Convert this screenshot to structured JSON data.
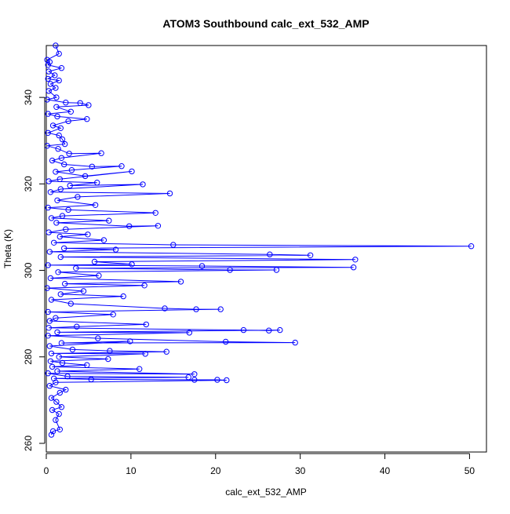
{
  "chart_data": {
    "type": "line",
    "title": "ATOM3 Southbound calc_ext_532_AMP",
    "xlabel": "calc_ext_532_AMP",
    "ylabel": "Theta (K)",
    "xlim": [
      0,
      52
    ],
    "ylim": [
      258,
      352
    ],
    "x_ticks": [
      0,
      10,
      20,
      30,
      40,
      50
    ],
    "y_ticks": [
      260,
      280,
      300,
      320,
      340
    ],
    "x_tick_labels": [
      "0",
      "10",
      "20",
      "30",
      "40",
      "50"
    ],
    "y_tick_labels": [
      "260",
      "280",
      "300",
      "320",
      "340"
    ],
    "grid": false,
    "legend": "none",
    "markers": "open-circle",
    "colors": {
      "series": "#0000ff",
      "axis": "#000000"
    },
    "series": [
      {
        "points": [
          [
            1.1,
            352.0
          ],
          [
            1.5,
            350.1
          ],
          [
            0.1,
            348.7
          ],
          [
            0.4,
            348.2
          ],
          [
            0.2,
            347.5
          ],
          [
            1.8,
            346.8
          ],
          [
            0.3,
            346.0
          ],
          [
            1.0,
            345.1
          ],
          [
            0.2,
            344.3
          ],
          [
            1.5,
            343.9
          ],
          [
            0.5,
            343.1
          ],
          [
            1.1,
            342.2
          ],
          [
            0.3,
            341.5
          ],
          [
            1.2,
            340.0
          ],
          [
            0.1,
            339.5
          ],
          [
            2.3,
            338.8
          ],
          [
            4.0,
            338.7
          ],
          [
            5.0,
            338.2
          ],
          [
            1.2,
            337.8
          ],
          [
            2.9,
            336.7
          ],
          [
            0.2,
            336.2
          ],
          [
            1.3,
            335.6
          ],
          [
            4.8,
            335.0
          ],
          [
            2.6,
            334.5
          ],
          [
            0.8,
            333.5
          ],
          [
            1.7,
            332.9
          ],
          [
            0.2,
            331.8
          ],
          [
            1.5,
            331.2
          ],
          [
            1.9,
            330.3
          ],
          [
            2.2,
            329.2
          ],
          [
            0.1,
            328.8
          ],
          [
            1.4,
            328.1
          ],
          [
            2.7,
            327.0
          ],
          [
            6.5,
            327.1
          ],
          [
            1.8,
            326.0
          ],
          [
            0.7,
            325.4
          ],
          [
            2.1,
            324.5
          ],
          [
            5.4,
            324.0
          ],
          [
            8.9,
            324.1
          ],
          [
            3.0,
            323.2
          ],
          [
            1.1,
            322.8
          ],
          [
            4.6,
            321.8
          ],
          [
            10.1,
            322.9
          ],
          [
            1.6,
            321.1
          ],
          [
            0.3,
            320.6
          ],
          [
            6.0,
            320.3
          ],
          [
            2.8,
            319.6
          ],
          [
            11.4,
            319.9
          ],
          [
            1.7,
            318.8
          ],
          [
            0.5,
            318.1
          ],
          [
            14.6,
            317.8
          ],
          [
            3.7,
            317.0
          ],
          [
            1.3,
            316.2
          ],
          [
            5.8,
            315.1
          ],
          [
            0.2,
            314.5
          ],
          [
            2.6,
            314.0
          ],
          [
            12.9,
            313.3
          ],
          [
            1.9,
            312.6
          ],
          [
            0.6,
            312.1
          ],
          [
            7.4,
            311.5
          ],
          [
            1.2,
            311.0
          ],
          [
            9.8,
            310.2
          ],
          [
            13.2,
            310.3
          ],
          [
            2.3,
            309.5
          ],
          [
            0.3,
            308.8
          ],
          [
            4.9,
            308.3
          ],
          [
            1.6,
            307.8
          ],
          [
            6.8,
            307.0
          ],
          [
            0.9,
            306.4
          ],
          [
            15.0,
            305.9
          ],
          [
            50.2,
            305.6
          ],
          [
            2.1,
            305.1
          ],
          [
            8.2,
            304.8
          ],
          [
            0.4,
            304.3
          ],
          [
            26.4,
            303.7
          ],
          [
            31.2,
            303.5
          ],
          [
            1.7,
            303.1
          ],
          [
            36.5,
            302.5
          ],
          [
            5.7,
            302.0
          ],
          [
            10.1,
            301.4
          ],
          [
            0.2,
            301.2
          ],
          [
            18.4,
            301.0
          ],
          [
            36.3,
            300.7
          ],
          [
            3.5,
            300.5
          ],
          [
            21.7,
            300.1
          ],
          [
            27.2,
            300.1
          ],
          [
            1.4,
            299.6
          ],
          [
            6.2,
            298.8
          ],
          [
            0.5,
            298.2
          ],
          [
            15.9,
            297.4
          ],
          [
            2.2,
            296.9
          ],
          [
            11.6,
            296.5
          ],
          [
            0.1,
            295.9
          ],
          [
            4.4,
            295.2
          ],
          [
            1.7,
            294.5
          ],
          [
            9.1,
            294.0
          ],
          [
            0.6,
            293.2
          ],
          [
            2.9,
            292.3
          ],
          [
            14.0,
            291.2
          ],
          [
            17.7,
            291.0
          ],
          [
            20.6,
            291.0
          ],
          [
            0.2,
            290.4
          ],
          [
            7.9,
            289.8
          ],
          [
            1.1,
            289.0
          ],
          [
            0.4,
            288.3
          ],
          [
            11.8,
            287.5
          ],
          [
            3.6,
            287.0
          ],
          [
            0.3,
            286.7
          ],
          [
            23.3,
            286.2
          ],
          [
            26.3,
            286.1
          ],
          [
            27.6,
            286.2
          ],
          [
            1.3,
            285.7
          ],
          [
            16.9,
            285.6
          ],
          [
            0.2,
            284.9
          ],
          [
            6.1,
            284.3
          ],
          [
            21.2,
            283.5
          ],
          [
            29.4,
            283.3
          ],
          [
            1.8,
            283.2
          ],
          [
            9.9,
            283.6
          ],
          [
            0.4,
            282.5
          ],
          [
            3.1,
            281.7
          ],
          [
            7.5,
            281.4
          ],
          [
            14.2,
            281.2
          ],
          [
            0.6,
            280.8
          ],
          [
            11.7,
            280.7
          ],
          [
            1.5,
            280.0
          ],
          [
            7.3,
            279.5
          ],
          [
            0.5,
            279.0
          ],
          [
            1.9,
            278.6
          ],
          [
            4.8,
            278.1
          ],
          [
            0.7,
            277.7
          ],
          [
            11.0,
            277.2
          ],
          [
            1.3,
            276.7
          ],
          [
            17.5,
            276.0
          ],
          [
            0.2,
            276.2
          ],
          [
            2.5,
            275.5
          ],
          [
            16.8,
            275.3
          ],
          [
            0.9,
            275.0
          ],
          [
            5.3,
            274.8
          ],
          [
            17.5,
            274.7
          ],
          [
            20.2,
            274.7
          ],
          [
            21.3,
            274.6
          ],
          [
            1.1,
            274.1
          ],
          [
            0.4,
            273.3
          ],
          [
            2.3,
            272.4
          ],
          [
            1.6,
            271.7
          ],
          [
            0.6,
            270.5
          ],
          [
            1.2,
            269.6
          ],
          [
            1.8,
            268.4
          ],
          [
            0.7,
            267.7
          ],
          [
            1.5,
            266.8
          ],
          [
            1.1,
            265.4
          ],
          [
            1.6,
            263.2
          ],
          [
            0.8,
            262.8
          ],
          [
            0.6,
            262.0
          ]
        ]
      }
    ]
  }
}
